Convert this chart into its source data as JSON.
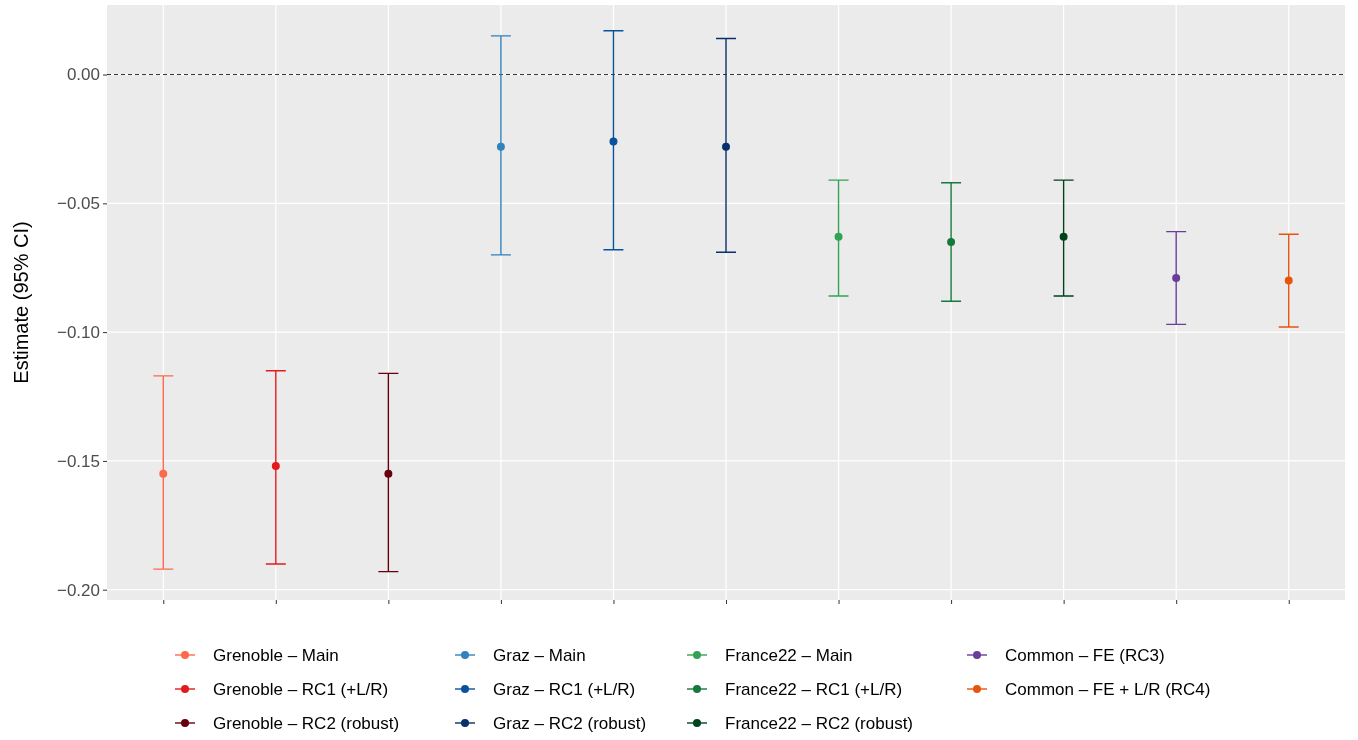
{
  "chart_data": {
    "type": "scatter",
    "ylabel": "Estimate (95% CI)",
    "categories": [
      null,
      null,
      null,
      null,
      null,
      null,
      null,
      null,
      null,
      null,
      null
    ],
    "series": [
      {
        "name": "Grenoble – Main",
        "color": "#fb6a4a",
        "values": [
          -0.155,
          null,
          null,
          null,
          null,
          null,
          null,
          null,
          null,
          null,
          null
        ],
        "errors": [
          [
            -0.192,
            -0.117
          ],
          null,
          null,
          null,
          null,
          null,
          null,
          null,
          null,
          null,
          null
        ]
      },
      {
        "name": "Grenoble – RC1 (+L/R)",
        "color": "#e31a1c",
        "values": [
          null,
          -0.152,
          null,
          null,
          null,
          null,
          null,
          null,
          null,
          null,
          null
        ],
        "errors": [
          null,
          [
            -0.19,
            -0.115
          ],
          null,
          null,
          null,
          null,
          null,
          null,
          null,
          null,
          null
        ]
      },
      {
        "name": "Grenoble – RC2 (robust)",
        "color": "#67000d",
        "values": [
          null,
          null,
          -0.155,
          null,
          null,
          null,
          null,
          null,
          null,
          null,
          null
        ],
        "errors": [
          null,
          null,
          [
            -0.193,
            -0.116
          ],
          null,
          null,
          null,
          null,
          null,
          null,
          null,
          null
        ]
      },
      {
        "name": "Graz – Main",
        "color": "#3182bd",
        "values": [
          null,
          null,
          null,
          -0.028,
          null,
          null,
          null,
          null,
          null,
          null,
          null
        ],
        "errors": [
          null,
          null,
          null,
          [
            -0.07,
            0.015
          ],
          null,
          null,
          null,
          null,
          null,
          null,
          null
        ]
      },
      {
        "name": "Graz – RC1 (+L/R)",
        "color": "#08519c",
        "values": [
          null,
          null,
          null,
          null,
          -0.026,
          null,
          null,
          null,
          null,
          null,
          null
        ],
        "errors": [
          null,
          null,
          null,
          null,
          [
            -0.068,
            0.017
          ],
          null,
          null,
          null,
          null,
          null,
          null
        ]
      },
      {
        "name": "Graz – RC2 (robust)",
        "color": "#08306b",
        "values": [
          null,
          null,
          null,
          null,
          null,
          -0.028,
          null,
          null,
          null,
          null,
          null
        ],
        "errors": [
          null,
          null,
          null,
          null,
          null,
          [
            -0.069,
            0.014
          ],
          null,
          null,
          null,
          null,
          null
        ]
      },
      {
        "name": "France22 – Main",
        "color": "#31a354",
        "values": [
          null,
          null,
          null,
          null,
          null,
          null,
          -0.063,
          null,
          null,
          null,
          null
        ],
        "errors": [
          null,
          null,
          null,
          null,
          null,
          null,
          [
            -0.086,
            -0.041
          ],
          null,
          null,
          null,
          null
        ]
      },
      {
        "name": "France22 – RC1 (+L/R)",
        "color": "#137a3a",
        "values": [
          null,
          null,
          null,
          null,
          null,
          null,
          null,
          -0.065,
          null,
          null,
          null
        ],
        "errors": [
          null,
          null,
          null,
          null,
          null,
          null,
          null,
          [
            -0.088,
            -0.042
          ],
          null,
          null,
          null
        ]
      },
      {
        "name": "France22 – RC2 (robust)",
        "color": "#00441b",
        "values": [
          null,
          null,
          null,
          null,
          null,
          null,
          null,
          null,
          -0.063,
          null,
          null
        ],
        "errors": [
          null,
          null,
          null,
          null,
          null,
          null,
          null,
          null,
          [
            -0.086,
            -0.041
          ],
          null,
          null
        ]
      },
      {
        "name": "Common – FE (RC3)",
        "color": "#6a3d9a",
        "values": [
          null,
          null,
          null,
          null,
          null,
          null,
          null,
          null,
          null,
          -0.079,
          null
        ],
        "errors": [
          null,
          null,
          null,
          null,
          null,
          null,
          null,
          null,
          null,
          [
            -0.097,
            -0.061
          ],
          null
        ]
      },
      {
        "name": "Common – FE + L/R (RC4)",
        "color": "#e6550d",
        "values": [
          null,
          null,
          null,
          null,
          null,
          null,
          null,
          null,
          null,
          null,
          -0.08
        ],
        "errors": [
          null,
          null,
          null,
          null,
          null,
          null,
          null,
          null,
          null,
          null,
          [
            -0.098,
            -0.062
          ]
        ]
      }
    ],
    "ylim": [
      -0.204,
      0.027
    ],
    "yticks": [
      {
        "value": -0.2,
        "label": "−0.20"
      },
      {
        "value": -0.15,
        "label": "−0.15"
      },
      {
        "value": -0.1,
        "label": "−0.10"
      },
      {
        "value": -0.05,
        "label": "−0.05"
      },
      {
        "value": 0,
        "label": "0.00"
      }
    ],
    "ref_lines": [
      {
        "axis": "y",
        "value": 0,
        "color": "#333333",
        "line_style": "dashed"
      }
    ],
    "grid": true,
    "legend": "bottom",
    "marker": "circle",
    "tick_labels": "y"
  }
}
